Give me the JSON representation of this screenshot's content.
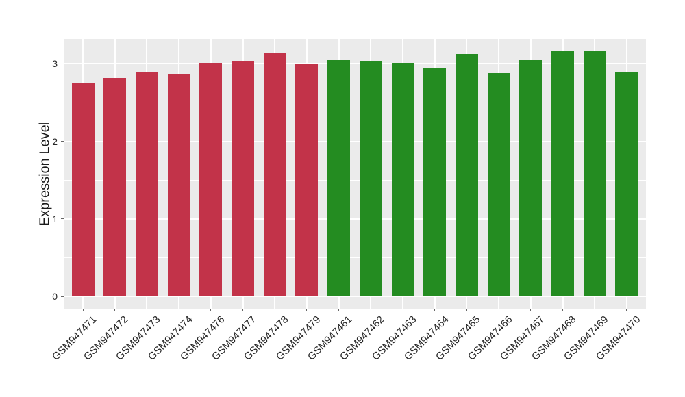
{
  "chart_data": {
    "type": "bar",
    "title": "",
    "xlabel": "",
    "ylabel": "Expression Level",
    "ylim": [
      0,
      3.35
    ],
    "yticks": [
      0,
      1,
      2,
      3
    ],
    "minor_yticks": [
      0.5,
      1.5,
      2.5
    ],
    "grid": "on",
    "legend": "none",
    "group_colors": {
      "left_group": "#C23349",
      "right_group": "#248C21"
    },
    "bars": [
      {
        "label": "GSM947471",
        "value": 2.76,
        "color": "#C23349"
      },
      {
        "label": "GSM947472",
        "value": 2.82,
        "color": "#C23349"
      },
      {
        "label": "GSM947473",
        "value": 2.9,
        "color": "#C23349"
      },
      {
        "label": "GSM947474",
        "value": 2.87,
        "color": "#C23349"
      },
      {
        "label": "GSM947476",
        "value": 3.01,
        "color": "#C23349"
      },
      {
        "label": "GSM947477",
        "value": 3.04,
        "color": "#C23349"
      },
      {
        "label": "GSM947478",
        "value": 3.14,
        "color": "#C23349"
      },
      {
        "label": "GSM947479",
        "value": 3.0,
        "color": "#C23349"
      },
      {
        "label": "GSM947461",
        "value": 3.06,
        "color": "#248C21"
      },
      {
        "label": "GSM947462",
        "value": 3.04,
        "color": "#248C21"
      },
      {
        "label": "GSM947463",
        "value": 3.01,
        "color": "#248C21"
      },
      {
        "label": "GSM947464",
        "value": 2.94,
        "color": "#248C21"
      },
      {
        "label": "GSM947465",
        "value": 3.13,
        "color": "#248C21"
      },
      {
        "label": "GSM947466",
        "value": 2.89,
        "color": "#248C21"
      },
      {
        "label": "GSM947467",
        "value": 3.05,
        "color": "#248C21"
      },
      {
        "label": "GSM947468",
        "value": 3.17,
        "color": "#248C21"
      },
      {
        "label": "GSM947469",
        "value": 3.17,
        "color": "#248C21"
      },
      {
        "label": "GSM947470",
        "value": 2.9,
        "color": "#248C21"
      }
    ]
  },
  "style": {
    "figure_background": "#FFFFFF",
    "panel_background": "#EBEBEB",
    "gridline_color": "#FFFFFF",
    "tick_mark_color": "#666666",
    "tick_label_color": "#262626",
    "axis_title_color": "#1A1A1A"
  }
}
